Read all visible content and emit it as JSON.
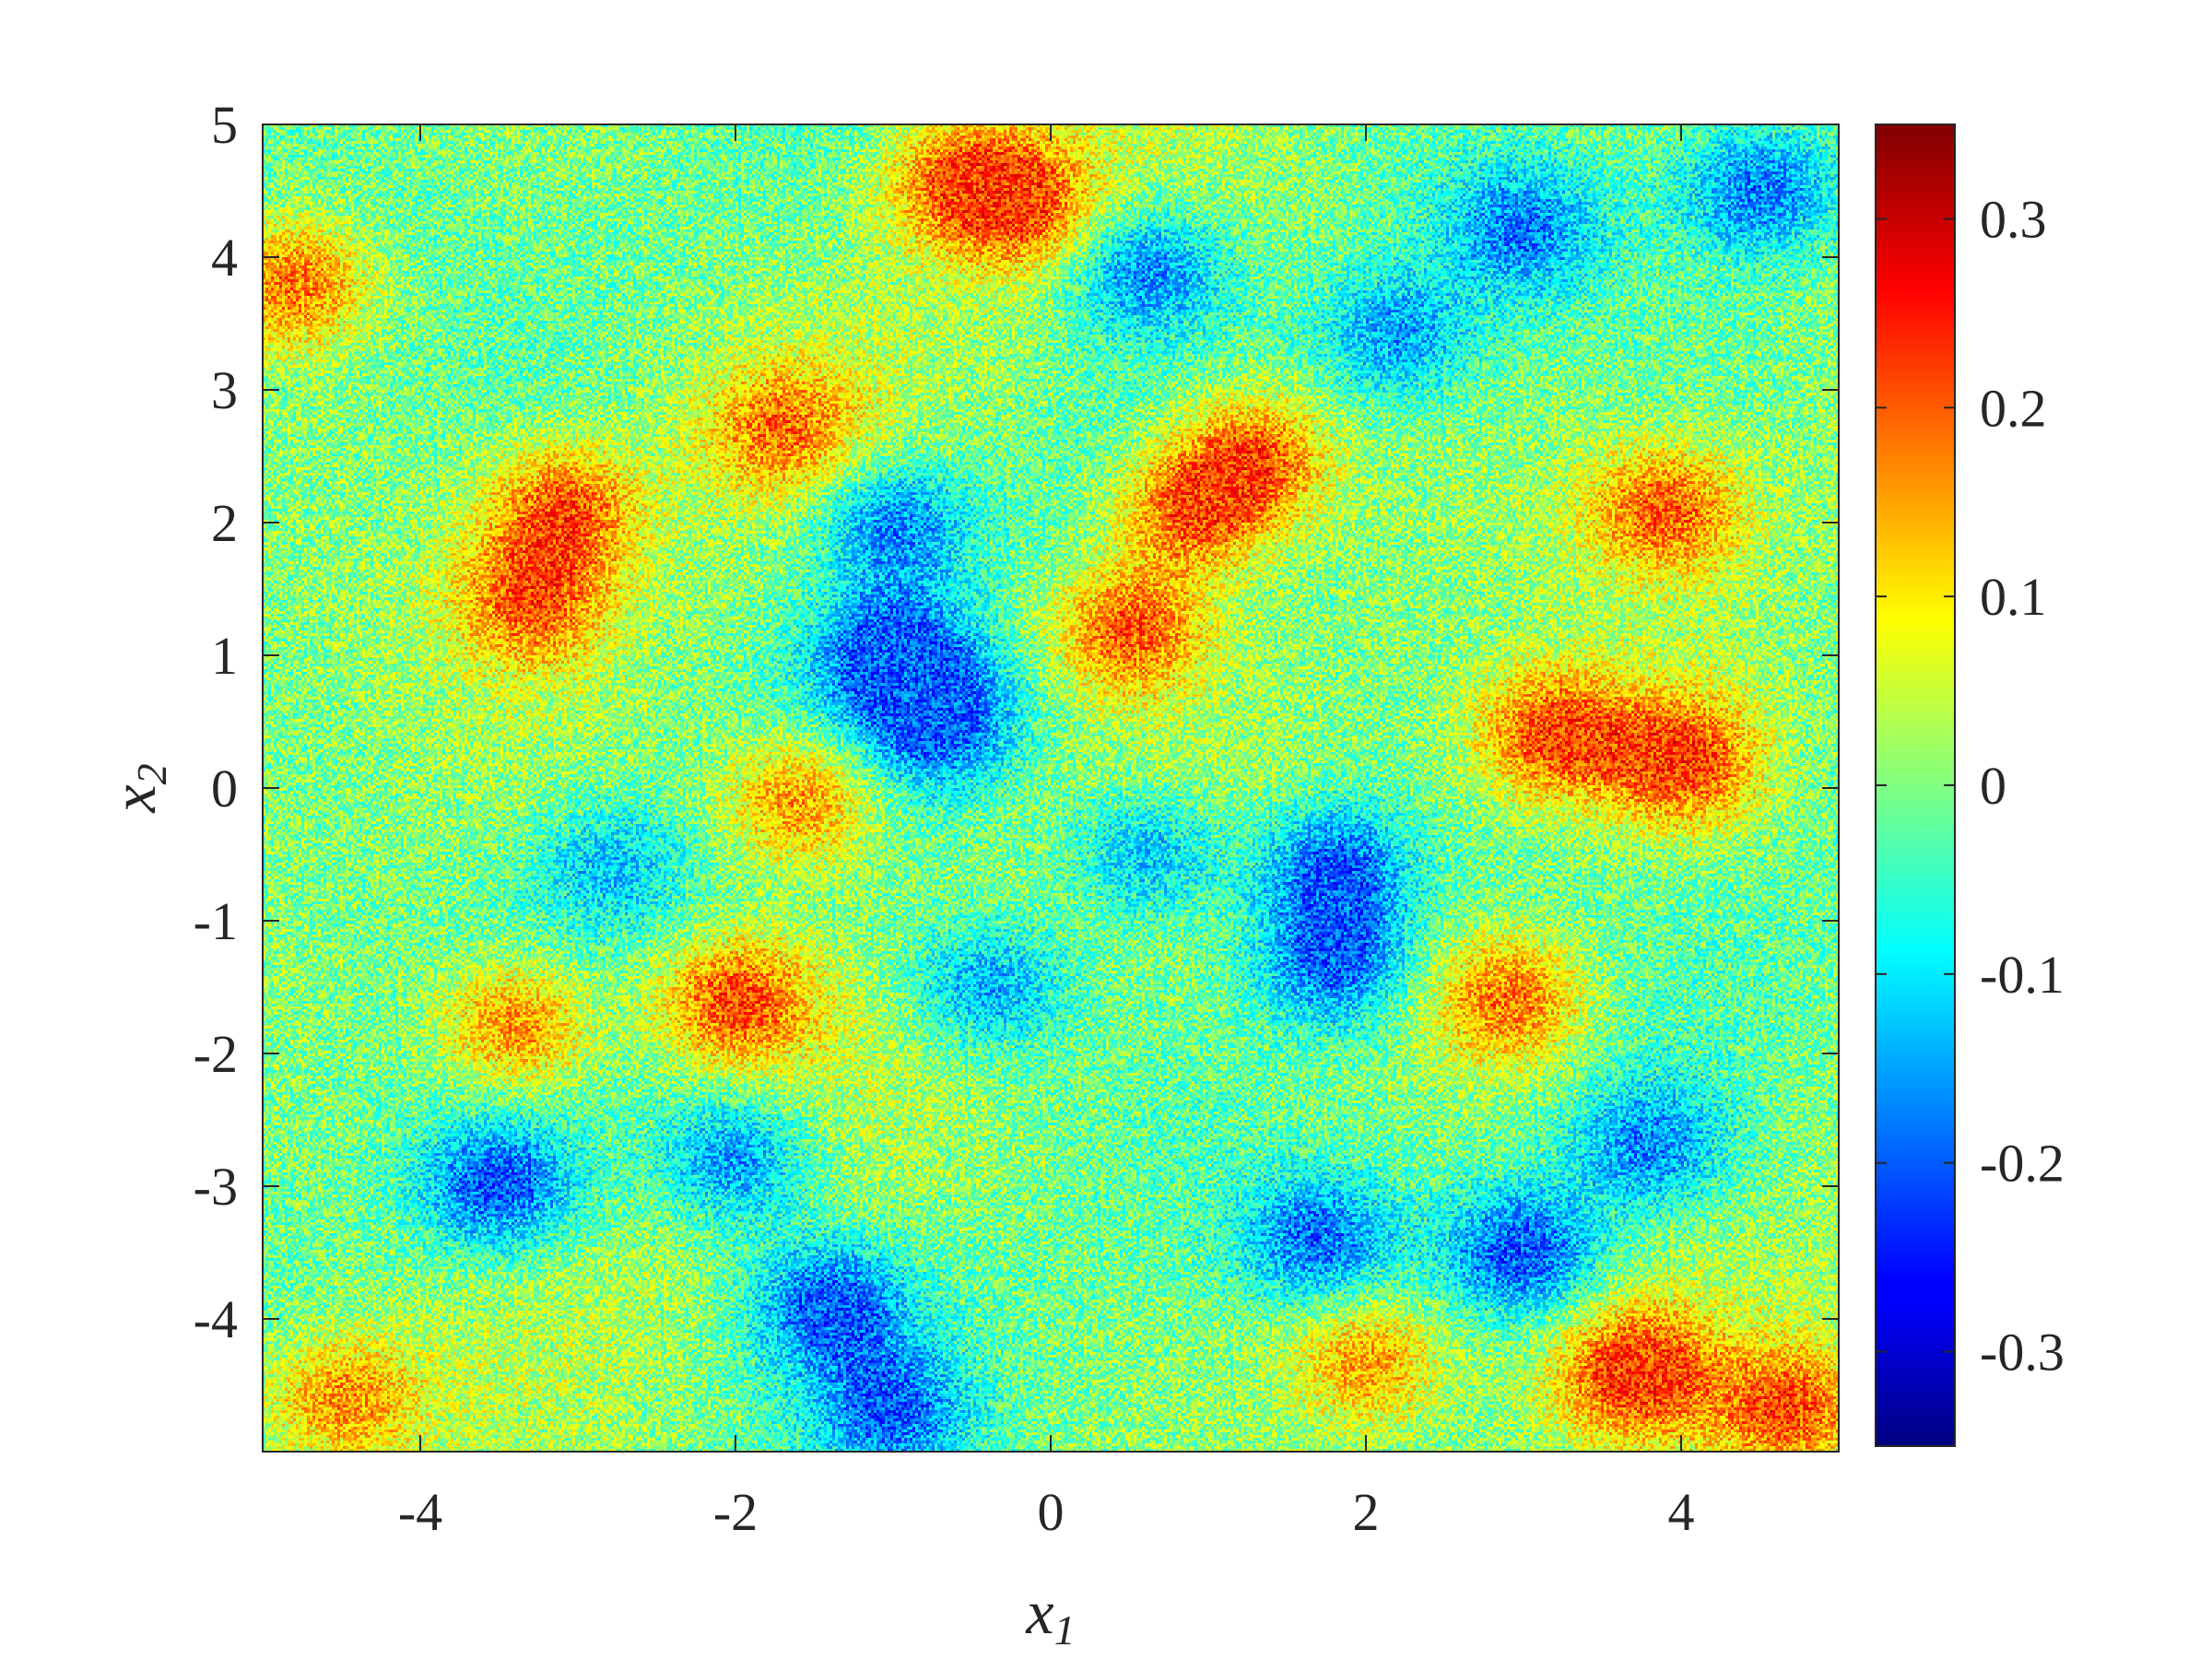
{
  "chart_data": {
    "type": "heatmap",
    "title": "",
    "xlabel": "x",
    "xlabel_sub": "1",
    "ylabel": "x",
    "ylabel_sub": "2",
    "xlim": [
      -5,
      5
    ],
    "ylim": [
      -5,
      5
    ],
    "xticks": [
      -4,
      -2,
      0,
      2,
      4
    ],
    "xtick_labels": [
      "-4",
      "-2",
      "0",
      "2",
      "4"
    ],
    "yticks": [
      -4,
      -3,
      -2,
      -1,
      0,
      1,
      2,
      3,
      4,
      5
    ],
    "ytick_labels": [
      "-4",
      "-3",
      "-2",
      "-1",
      "0",
      "1",
      "2",
      "3",
      "4",
      "5"
    ],
    "colormap": "jet",
    "colorbar": {
      "range": [
        -0.35,
        0.35
      ],
      "ticks": [
        -0.3,
        -0.2,
        -0.1,
        0,
        0.1,
        0.2,
        0.3
      ],
      "tick_labels": [
        "-0.3",
        "-0.2",
        "-0.1",
        "0",
        "0.1",
        "0.2",
        "0.3"
      ],
      "placement": "right"
    },
    "field_features": [
      {
        "x": 0.9,
        "y": 2.1,
        "value": 0.27
      },
      {
        "x": 1.3,
        "y": 2.5,
        "value": 0.25
      },
      {
        "x": 0.5,
        "y": 1.2,
        "value": 0.26
      },
      {
        "x": -1.6,
        "y": -0.1,
        "value": 0.24
      },
      {
        "x": -2.0,
        "y": -1.6,
        "value": 0.27
      },
      {
        "x": -3.4,
        "y": -1.8,
        "value": 0.24
      },
      {
        "x": -3.1,
        "y": 2.1,
        "value": 0.25
      },
      {
        "x": -3.3,
        "y": 1.4,
        "value": 0.22
      },
      {
        "x": -4.8,
        "y": 3.8,
        "value": 0.24
      },
      {
        "x": 3.2,
        "y": 0.4,
        "value": 0.27
      },
      {
        "x": 4.0,
        "y": 0.2,
        "value": 0.28
      },
      {
        "x": 3.9,
        "y": 2.1,
        "value": 0.25
      },
      {
        "x": 2.9,
        "y": -1.6,
        "value": 0.24
      },
      {
        "x": 3.7,
        "y": -4.4,
        "value": 0.29
      },
      {
        "x": 4.7,
        "y": -4.7,
        "value": 0.25
      },
      {
        "x": -0.2,
        "y": 4.4,
        "value": 0.24
      },
      {
        "x": -0.6,
        "y": 4.6,
        "value": 0.2
      },
      {
        "x": -1.7,
        "y": 2.7,
        "value": 0.2
      },
      {
        "x": 2.0,
        "y": -4.3,
        "value": 0.2
      },
      {
        "x": -4.5,
        "y": -4.6,
        "value": 0.2
      },
      {
        "x": -1.0,
        "y": 1.0,
        "value": -0.26
      },
      {
        "x": -1.0,
        "y": 2.0,
        "value": -0.22
      },
      {
        "x": -0.7,
        "y": 0.5,
        "value": -0.24
      },
      {
        "x": 1.8,
        "y": -0.6,
        "value": -0.25
      },
      {
        "x": 1.8,
        "y": -1.3,
        "value": -0.25
      },
      {
        "x": -3.5,
        "y": -3.0,
        "value": -0.26
      },
      {
        "x": -1.4,
        "y": -3.9,
        "value": -0.26
      },
      {
        "x": -2.0,
        "y": -2.8,
        "value": -0.22
      },
      {
        "x": 3.0,
        "y": -3.5,
        "value": -0.27
      },
      {
        "x": 3.8,
        "y": -2.7,
        "value": -0.2
      },
      {
        "x": 1.7,
        "y": -3.4,
        "value": -0.22
      },
      {
        "x": 0.6,
        "y": 3.9,
        "value": -0.22
      },
      {
        "x": 3.0,
        "y": 4.2,
        "value": -0.2
      },
      {
        "x": 4.5,
        "y": 4.5,
        "value": -0.22
      },
      {
        "x": 2.2,
        "y": 3.4,
        "value": -0.18
      },
      {
        "x": 0.6,
        "y": -0.5,
        "value": -0.18
      },
      {
        "x": -2.8,
        "y": -0.6,
        "value": -0.14
      },
      {
        "x": -1.0,
        "y": -4.7,
        "value": -0.2
      },
      {
        "x": -0.4,
        "y": -1.5,
        "value": -0.2
      }
    ]
  }
}
